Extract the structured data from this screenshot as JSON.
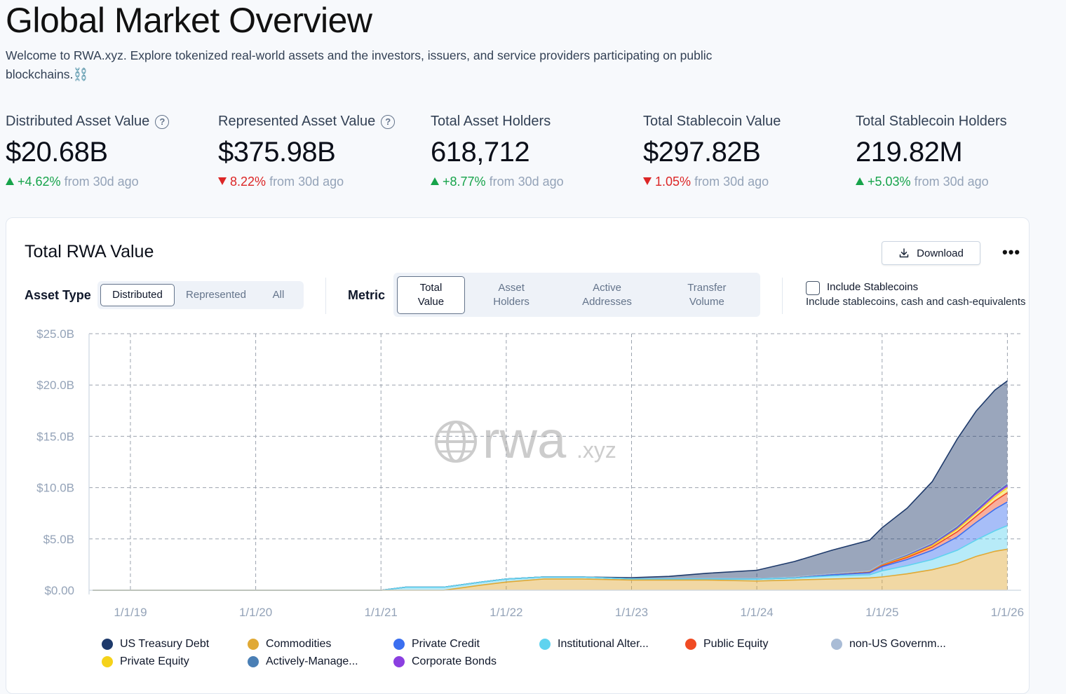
{
  "header": {
    "title": "Global Market Overview",
    "intro": "Welcome to RWA.xyz. Explore tokenized real-world assets and the investors, issuers, and service providers participating on public blockchains.⛓️"
  },
  "stats": [
    {
      "label": "Distributed Asset Value",
      "help": true,
      "value": "$20.68B",
      "direction": "up",
      "change": "+4.62%",
      "suffix": "from 30d ago"
    },
    {
      "label": "Represented Asset Value",
      "help": true,
      "value": "$375.98B",
      "direction": "down",
      "change": "8.22%",
      "suffix": "from 30d ago"
    },
    {
      "label": "Total Asset Holders",
      "help": false,
      "value": "618,712",
      "direction": "up",
      "change": "+8.77%",
      "suffix": "from 30d ago"
    },
    {
      "label": "Total Stablecoin Value",
      "help": false,
      "value": "$297.82B",
      "direction": "down",
      "change": "1.05%",
      "suffix": "from 30d ago"
    },
    {
      "label": "Total Stablecoin Holders",
      "help": false,
      "value": "219.82M",
      "direction": "up",
      "change": "+5.03%",
      "suffix": "from 30d ago"
    }
  ],
  "card": {
    "title": "Total RWA Value",
    "download_label": "Download",
    "more_label": "•••",
    "asset_type_label": "Asset Type",
    "asset_types": [
      "Distributed",
      "Represented",
      "All"
    ],
    "asset_type_selected": "Distributed",
    "metric_label": "Metric",
    "metrics": [
      [
        "Total",
        "Value"
      ],
      [
        "Asset",
        "Holders"
      ],
      [
        "Active",
        "Addresses"
      ],
      [
        "Transfer",
        "Volume"
      ]
    ],
    "metric_selected": "Total Value",
    "include_stablecoins_label": "Include Stablecoins",
    "include_stablecoins_checked": false,
    "include_stablecoins_desc": "Include stablecoins, cash and cash-equivalents"
  },
  "watermark": {
    "main": "rwa",
    "suffix": ".xyz"
  },
  "colors": {
    "us_treasury": "#1e3a6b",
    "commodities": "#e0a935",
    "private_credit": "#3b6ff0",
    "institutional": "#5fd3ef",
    "public_equity": "#f04b23",
    "non_us_gov": "#a9bcd6",
    "private_equity": "#f5d21a",
    "actively_managed": "#4a7fb5",
    "corporate_bonds": "#8b3fe0"
  },
  "chart_data": {
    "type": "area",
    "stacked": true,
    "title": "Total RWA Value",
    "xlabel": "",
    "ylabel": "",
    "x_ticks": [
      "1/1/19",
      "1/1/20",
      "1/1/21",
      "1/1/22",
      "1/1/23",
      "1/1/24",
      "1/1/25",
      "1/1/26"
    ],
    "y_ticks": [
      "$0.00",
      "$5.0B",
      "$10.0B",
      "$15.0B",
      "$20.0B",
      "$25.0B"
    ],
    "ylim": [
      0,
      25
    ],
    "xlim": [
      2018.67,
      2026.02
    ],
    "grid": true,
    "x": [
      2018.7,
      2019.0,
      2019.5,
      2020.0,
      2020.5,
      2021.0,
      2021.2,
      2021.5,
      2021.8,
      2022.0,
      2022.3,
      2022.6,
      2023.0,
      2023.3,
      2023.6,
      2024.0,
      2024.3,
      2024.6,
      2024.9,
      2025.0,
      2025.2,
      2025.4,
      2025.6,
      2025.75,
      2025.9,
      2026.0
    ],
    "series": [
      {
        "name": "Commodities",
        "values": [
          0,
          0,
          0,
          0,
          0,
          0,
          0,
          0,
          0.5,
          0.8,
          1.1,
          1.1,
          1.0,
          1.0,
          1.0,
          0.9,
          1.0,
          1.1,
          1.2,
          1.3,
          1.6,
          2.0,
          2.6,
          3.3,
          3.8,
          4.0
        ]
      },
      {
        "name": "Institutional Alter...",
        "values": [
          0,
          0,
          0,
          0,
          0,
          0,
          0.3,
          0.3,
          0.3,
          0.3,
          0.2,
          0.2,
          0.1,
          0.1,
          0.1,
          0.2,
          0.2,
          0.3,
          0.3,
          0.6,
          0.8,
          1.0,
          1.3,
          1.6,
          2.0,
          2.3
        ]
      },
      {
        "name": "Private Credit",
        "values": [
          0,
          0,
          0,
          0,
          0,
          0,
          0,
          0,
          0,
          0,
          0,
          0,
          0,
          0,
          0,
          0,
          0,
          0.1,
          0.2,
          0.4,
          0.6,
          0.9,
          1.3,
          1.7,
          2.1,
          2.3
        ]
      },
      {
        "name": "Public Equity",
        "values": [
          0,
          0,
          0,
          0,
          0,
          0,
          0,
          0,
          0,
          0,
          0,
          0,
          0,
          0,
          0,
          0,
          0,
          0,
          0.05,
          0.1,
          0.2,
          0.3,
          0.5,
          0.6,
          0.8,
          0.9
        ]
      },
      {
        "name": "Private Equity",
        "values": [
          0,
          0,
          0,
          0,
          0,
          0,
          0,
          0,
          0,
          0,
          0,
          0,
          0,
          0,
          0,
          0,
          0,
          0,
          0.02,
          0.05,
          0.1,
          0.15,
          0.25,
          0.3,
          0.4,
          0.5
        ]
      },
      {
        "name": "Corporate Bonds",
        "values": [
          0,
          0,
          0,
          0,
          0,
          0,
          0,
          0,
          0,
          0,
          0,
          0,
          0,
          0,
          0,
          0,
          0,
          0,
          0,
          0.02,
          0.05,
          0.08,
          0.1,
          0.15,
          0.2,
          0.2
        ]
      },
      {
        "name": "Actively-Manage...",
        "values": [
          0,
          0,
          0,
          0,
          0,
          0,
          0,
          0,
          0,
          0,
          0,
          0,
          0,
          0,
          0,
          0,
          0,
          0,
          0,
          0.02,
          0.05,
          0.05,
          0.1,
          0.1,
          0.1,
          0.1
        ]
      },
      {
        "name": "non-US Governm...",
        "values": [
          0,
          0,
          0,
          0,
          0,
          0,
          0,
          0,
          0,
          0,
          0,
          0,
          0.02,
          0.05,
          0.05,
          0.05,
          0.1,
          0.1,
          0.1,
          0.1,
          0.1,
          0.1,
          0.1,
          0.1,
          0.1,
          0.1
        ]
      },
      {
        "name": "US Treasury Debt",
        "values": [
          0,
          0,
          0,
          0,
          0,
          0,
          0,
          0,
          0,
          0,
          0,
          0,
          0.1,
          0.2,
          0.5,
          0.8,
          1.5,
          2.3,
          3.0,
          3.5,
          4.5,
          6.0,
          8.5,
          9.6,
          10.0,
          10.0
        ]
      }
    ]
  },
  "legend": [
    {
      "name": "US Treasury Debt",
      "color_key": "us_treasury"
    },
    {
      "name": "Commodities",
      "color_key": "commodities"
    },
    {
      "name": "Private Credit",
      "color_key": "private_credit"
    },
    {
      "name": "Institutional Alter...",
      "color_key": "institutional"
    },
    {
      "name": "Public Equity",
      "color_key": "public_equity"
    },
    {
      "name": "non-US Governm...",
      "color_key": "non_us_gov"
    },
    {
      "name": "Private Equity",
      "color_key": "private_equity"
    },
    {
      "name": "Actively-Manage...",
      "color_key": "actively_managed"
    },
    {
      "name": "Corporate Bonds",
      "color_key": "corporate_bonds"
    }
  ]
}
